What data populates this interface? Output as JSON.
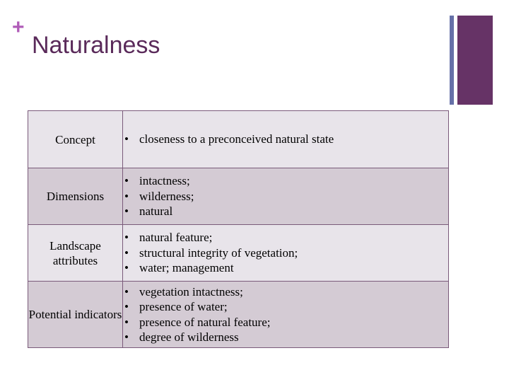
{
  "slide": {
    "plus_symbol": "+",
    "title": "Naturalness"
  },
  "colors": {
    "title_text": "#5a2a5a",
    "plus_accent": "#b05cb8",
    "bar_thin": "#6670a8",
    "bar_thick": "#663366",
    "row_light": "#e8e4ea",
    "row_dark": "#d4cbd4"
  },
  "table": {
    "rows": [
      {
        "label": "Concept",
        "items": [
          "closeness to a preconceived natural state"
        ]
      },
      {
        "label": "Dimensions",
        "items": [
          "intactness;",
          "wilderness;",
          "natural"
        ]
      },
      {
        "label": "Landscape attributes",
        "items": [
          "natural feature;",
          "structural integrity of vegetation;",
          "water; management"
        ]
      },
      {
        "label": "Potential indicators",
        "items": [
          "vegetation intactness;",
          "presence of water;",
          "presence of natural feature;",
          "degree of wilderness"
        ]
      }
    ]
  }
}
